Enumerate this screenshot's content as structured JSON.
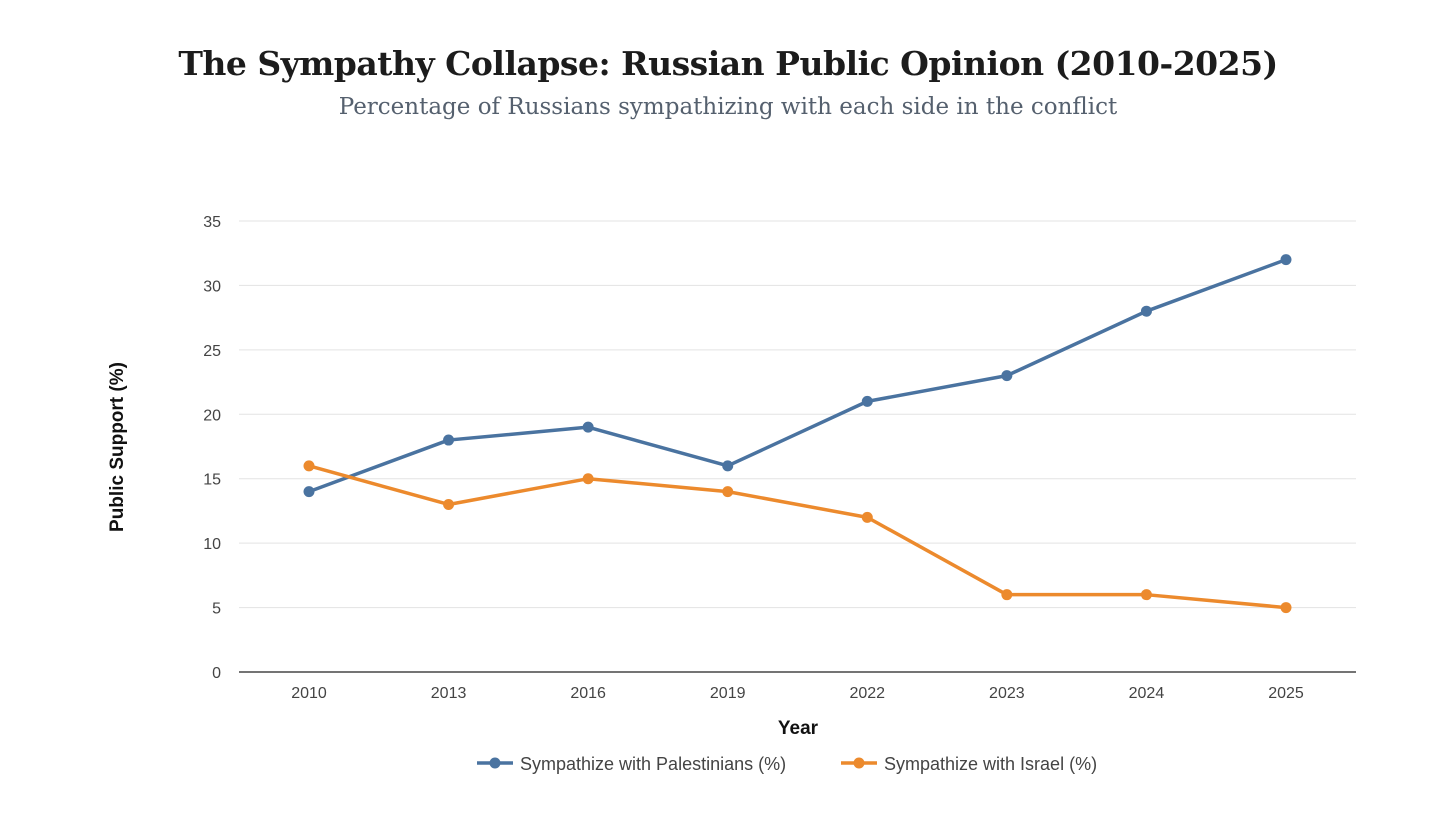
{
  "chart_data": {
    "type": "line",
    "title": "The Sympathy Collapse: Russian Public Opinion (2010-2025)",
    "subtitle": "Percentage of Russians sympathizing with each side in the conflict",
    "xlabel": "Year",
    "ylabel": "Public Support (%)",
    "categories": [
      "2010",
      "2013",
      "2016",
      "2019",
      "2022",
      "2023",
      "2024",
      "2025"
    ],
    "ylim": [
      0,
      35
    ],
    "yticks": [
      0,
      5,
      10,
      15,
      20,
      25,
      30,
      35
    ],
    "grid": true,
    "legend_position": "bottom",
    "series": [
      {
        "name": "Sympathize with Palestinians (%)",
        "color": "#4a73a0",
        "values": [
          14,
          18,
          19,
          16,
          21,
          23,
          28,
          32
        ]
      },
      {
        "name": "Sympathize with Israel (%)",
        "color": "#ec8a2d",
        "values": [
          16,
          13,
          15,
          14,
          12,
          6,
          6,
          5
        ]
      }
    ]
  }
}
